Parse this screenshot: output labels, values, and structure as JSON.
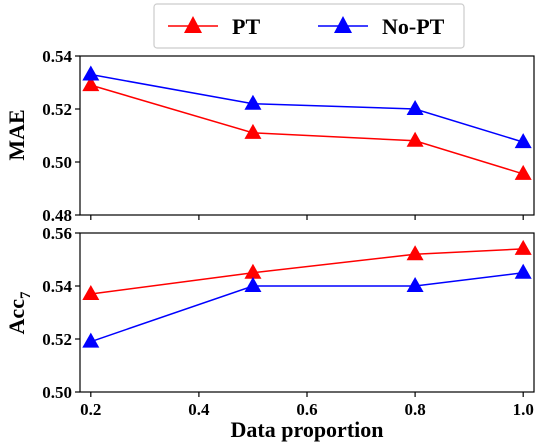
{
  "chart_data": {
    "type": "line",
    "xlabel": "Data proportion",
    "x": [
      0.2,
      0.5,
      0.8,
      1.0
    ],
    "xlim": [
      0.18,
      1.02
    ],
    "xticks": [
      0.2,
      0.4,
      0.6,
      0.8,
      1.0
    ],
    "xtick_labels": [
      "0.2",
      "0.4",
      "0.6",
      "0.8",
      "1.0"
    ],
    "legend": {
      "placement": "top-center",
      "entries": [
        {
          "name": "PT",
          "color": "#ff0000"
        },
        {
          "name": "No-PT",
          "color": "#0000ff"
        }
      ]
    },
    "panels": [
      {
        "ylabel": "MAE",
        "ylim": [
          0.48,
          0.54
        ],
        "yticks": [
          0.48,
          0.5,
          0.52,
          0.54
        ],
        "ytick_labels": [
          "0.48",
          "0.50",
          "0.52",
          "0.54"
        ],
        "series": [
          {
            "name": "PT",
            "color": "#ff0000",
            "values": [
              0.529,
              0.511,
              0.508,
              0.4955
            ]
          },
          {
            "name": "No-PT",
            "color": "#0000ff",
            "values": [
              0.533,
              0.522,
              0.52,
              0.5075
            ]
          }
        ]
      },
      {
        "ylabel": "Acc",
        "ylabel_sub": "7",
        "ylim": [
          0.5,
          0.56
        ],
        "yticks": [
          0.5,
          0.52,
          0.54,
          0.56
        ],
        "ytick_labels": [
          "0.50",
          "0.52",
          "0.54",
          "0.56"
        ],
        "series": [
          {
            "name": "PT",
            "color": "#ff0000",
            "values": [
              0.537,
              0.545,
              0.552,
              0.554
            ]
          },
          {
            "name": "No-PT",
            "color": "#0000ff",
            "values": [
              0.519,
              0.54,
              0.54,
              0.545
            ]
          }
        ]
      }
    ]
  }
}
